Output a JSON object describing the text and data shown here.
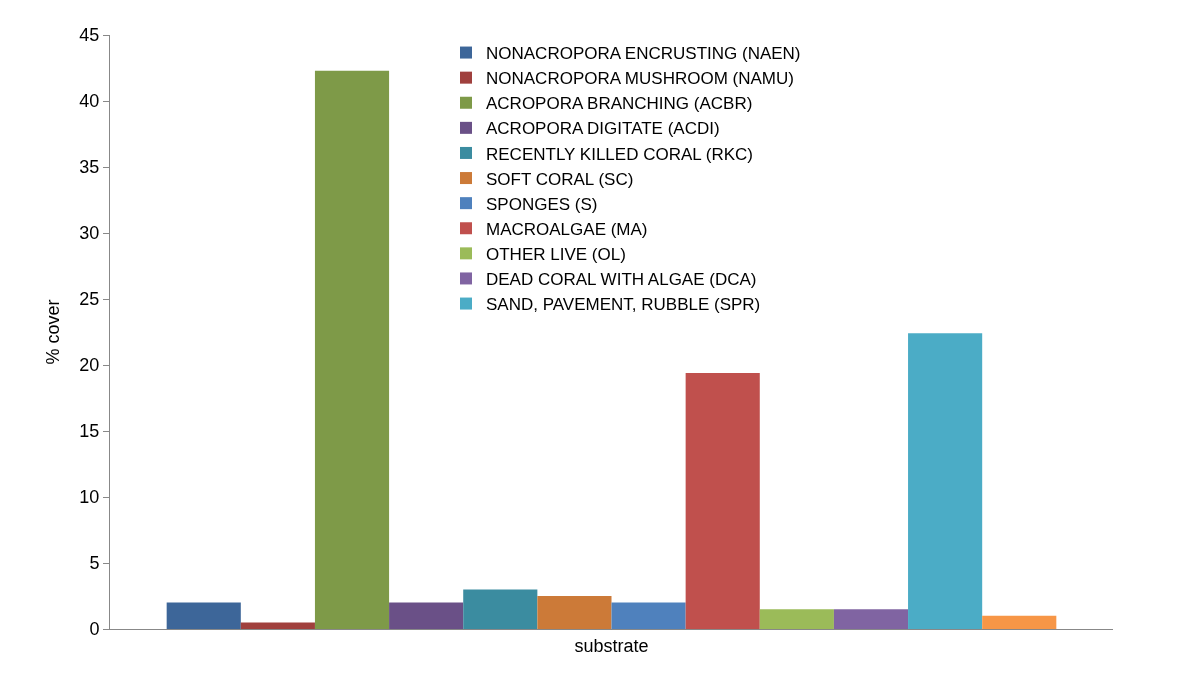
{
  "chart_data": {
    "type": "bar",
    "ylabel": "% cover",
    "categories": [
      "substrate"
    ],
    "series": [
      {
        "name": "NONACROPORA ENCRUSTING (NAEN)",
        "color": "#3d6699",
        "values": [
          2.0
        ]
      },
      {
        "name": "NONACROPORA MUSHROOM (NAMU)",
        "color": "#a0403d",
        "values": [
          0.5
        ]
      },
      {
        "name": "ACROPORA BRANCHING (ACBR)",
        "color": "#7e9a48",
        "values": [
          42.3
        ]
      },
      {
        "name": "ACROPORA DIGITATE (ACDI)",
        "color": "#6a5087",
        "values": [
          2.0
        ]
      },
      {
        "name": "RECENTLY KILLED CORAL (RKC)",
        "color": "#3b8ca0",
        "values": [
          3.0
        ]
      },
      {
        "name": "SOFT CORAL (SC)",
        "color": "#cc7a38",
        "values": [
          2.5
        ]
      },
      {
        "name": "SPONGES (S)",
        "color": "#4f81bd",
        "values": [
          2.0
        ]
      },
      {
        "name": "MACROALGAE (MA)",
        "color": "#c0504d",
        "values": [
          19.4
        ]
      },
      {
        "name": "OTHER LIVE (OL)",
        "color": "#9bbb59",
        "values": [
          1.5
        ]
      },
      {
        "name": "DEAD CORAL WITH ALGAE (DCA)",
        "color": "#8064a2",
        "values": [
          1.5
        ]
      },
      {
        "name": "SAND, PAVEMENT, RUBBLE (SPR)",
        "color": "#4bacc6",
        "values": [
          22.4
        ]
      },
      {
        "color": "#f79646",
        "values": [
          1.0
        ]
      }
    ],
    "ylim": [
      0,
      45
    ],
    "yticks": [
      0,
      5,
      10,
      15,
      20,
      25,
      30,
      35,
      40,
      45
    ],
    "legend": "top"
  }
}
